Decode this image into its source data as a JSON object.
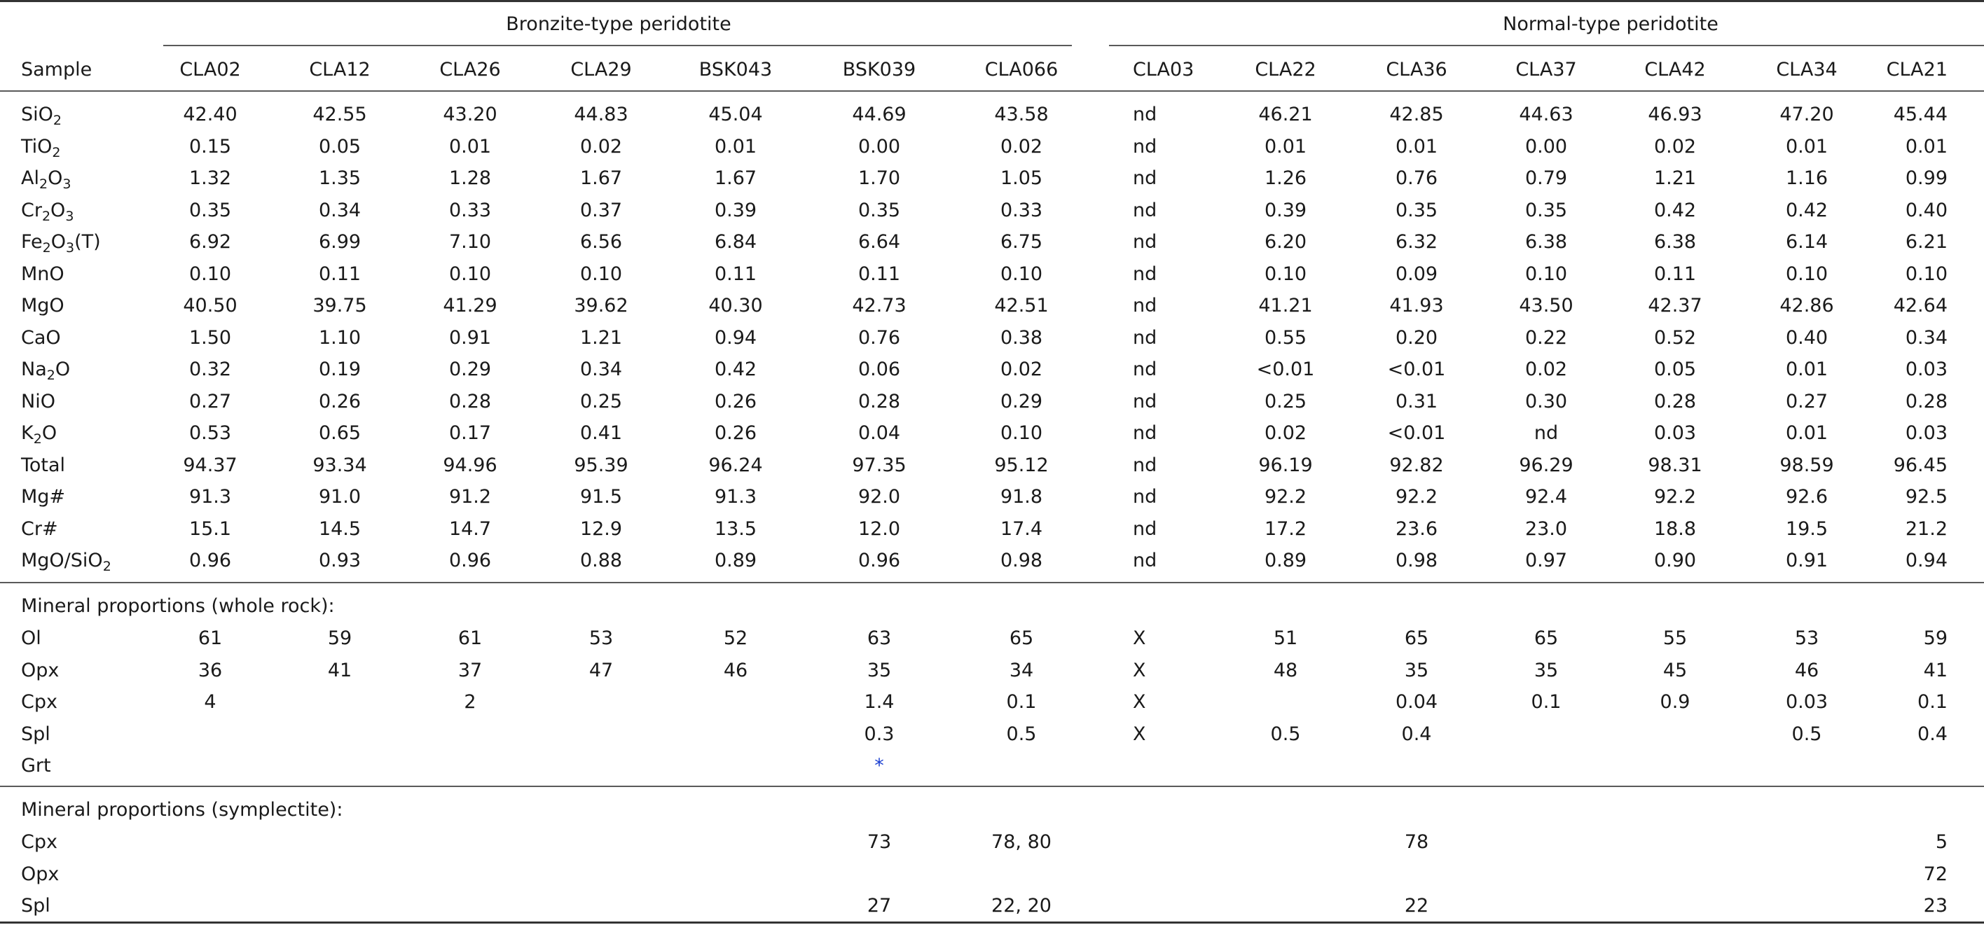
{
  "header": {
    "sample_label": "Sample",
    "group_bronzite": "Bronzite-type peridotite",
    "group_normal": "Normal-type peridotite",
    "samples": [
      "CLA02",
      "CLA12",
      "CLA26",
      "CLA29",
      "BSK043",
      "BSK039",
      "CLA066",
      "CLA03",
      "CLA22",
      "CLA36",
      "CLA37",
      "CLA42",
      "CLA34",
      "CLA21"
    ]
  },
  "chem_rows": [
    {
      "label": "SiO",
      "sub": "2",
      "post": "",
      "values": [
        "42.40",
        "42.55",
        "43.20",
        "44.83",
        "45.04",
        "44.69",
        "43.58",
        "nd",
        "46.21",
        "42.85",
        "44.63",
        "46.93",
        "47.20",
        "45.44"
      ]
    },
    {
      "label": "TiO",
      "sub": "2",
      "post": "",
      "values": [
        "0.15",
        "0.05",
        "0.01",
        "0.02",
        "0.01",
        "0.00",
        "0.02",
        "nd",
        "0.01",
        "0.01",
        "0.00",
        "0.02",
        "0.01",
        "0.01"
      ]
    },
    {
      "label": "Al",
      "sub": "2",
      "post": "O",
      "sub2": "3",
      "values": [
        "1.32",
        "1.35",
        "1.28",
        "1.67",
        "1.67",
        "1.70",
        "1.05",
        "nd",
        "1.26",
        "0.76",
        "0.79",
        "1.21",
        "1.16",
        "0.99"
      ]
    },
    {
      "label": "Cr",
      "sub": "2",
      "post": "O",
      "sub2": "3",
      "values": [
        "0.35",
        "0.34",
        "0.33",
        "0.37",
        "0.39",
        "0.35",
        "0.33",
        "nd",
        "0.39",
        "0.35",
        "0.35",
        "0.42",
        "0.42",
        "0.40"
      ]
    },
    {
      "label": "Fe",
      "sub": "2",
      "post": "O",
      "sub2": "3",
      "post2": "(T)",
      "values": [
        "6.92",
        "6.99",
        "7.10",
        "6.56",
        "6.84",
        "6.64",
        "6.75",
        "nd",
        "6.20",
        "6.32",
        "6.38",
        "6.38",
        "6.14",
        "6.21"
      ]
    },
    {
      "label": "MnO",
      "values": [
        "0.10",
        "0.11",
        "0.10",
        "0.10",
        "0.11",
        "0.11",
        "0.10",
        "nd",
        "0.10",
        "0.09",
        "0.10",
        "0.11",
        "0.10",
        "0.10"
      ]
    },
    {
      "label": "MgO",
      "values": [
        "40.50",
        "39.75",
        "41.29",
        "39.62",
        "40.30",
        "42.73",
        "42.51",
        "nd",
        "41.21",
        "41.93",
        "43.50",
        "42.37",
        "42.86",
        "42.64"
      ]
    },
    {
      "label": "CaO",
      "values": [
        "1.50",
        "1.10",
        "0.91",
        "1.21",
        "0.94",
        "0.76",
        "0.38",
        "nd",
        "0.55",
        "0.20",
        "0.22",
        "0.52",
        "0.40",
        "0.34"
      ]
    },
    {
      "label": "Na",
      "sub": "2",
      "post": "O",
      "values": [
        "0.32",
        "0.19",
        "0.29",
        "0.34",
        "0.42",
        "0.06",
        "0.02",
        "nd",
        "<0.01",
        "<0.01",
        "0.02",
        "0.05",
        "0.01",
        "0.03"
      ]
    },
    {
      "label": "NiO",
      "values": [
        "0.27",
        "0.26",
        "0.28",
        "0.25",
        "0.26",
        "0.28",
        "0.29",
        "nd",
        "0.25",
        "0.31",
        "0.30",
        "0.28",
        "0.27",
        "0.28"
      ]
    },
    {
      "label": "K",
      "sub": "2",
      "post": "O",
      "values": [
        "0.53",
        "0.65",
        "0.17",
        "0.41",
        "0.26",
        "0.04",
        "0.10",
        "nd",
        "0.02",
        "<0.01",
        "nd",
        "0.03",
        "0.01",
        "0.03"
      ]
    },
    {
      "label": "Total",
      "values": [
        "94.37",
        "93.34",
        "94.96",
        "95.39",
        "96.24",
        "97.35",
        "95.12",
        "nd",
        "96.19",
        "92.82",
        "96.29",
        "98.31",
        "98.59",
        "96.45"
      ]
    },
    {
      "label": "Mg#",
      "values": [
        "91.3",
        "91.0",
        "91.2",
        "91.5",
        "91.3",
        "92.0",
        "91.8",
        "nd",
        "92.2",
        "92.2",
        "92.4",
        "92.2",
        "92.6",
        "92.5"
      ]
    },
    {
      "label": "Cr#",
      "values": [
        "15.1",
        "14.5",
        "14.7",
        "12.9",
        "13.5",
        "12.0",
        "17.4",
        "nd",
        "17.2",
        "23.6",
        "23.0",
        "18.8",
        "19.5",
        "21.2"
      ]
    },
    {
      "label": "MgO/SiO",
      "sub": "2",
      "post": "",
      "values": [
        "0.96",
        "0.93",
        "0.96",
        "0.88",
        "0.89",
        "0.96",
        "0.98",
        "nd",
        "0.89",
        "0.98",
        "0.97",
        "0.90",
        "0.91",
        "0.94"
      ]
    }
  ],
  "whole_rock": {
    "title": "Mineral proportions (whole rock):",
    "rows": [
      {
        "label": "Ol",
        "values": [
          "61",
          "59",
          "61",
          "53",
          "52",
          "63",
          "65",
          "X",
          "51",
          "65",
          "65",
          "55",
          "53",
          "59"
        ]
      },
      {
        "label": "Opx",
        "values": [
          "36",
          "41",
          "37",
          "47",
          "46",
          "35",
          "34",
          "X",
          "48",
          "35",
          "35",
          "45",
          "46",
          "41"
        ]
      },
      {
        "label": "Cpx",
        "values": [
          "4",
          "",
          "2",
          "",
          "",
          "1.4",
          "0.1",
          "X",
          "",
          "0.04",
          "0.1",
          "0.9",
          "0.03",
          "0.1"
        ]
      },
      {
        "label": "Spl",
        "values": [
          "",
          "",
          "",
          "",
          "",
          "0.3",
          "0.5",
          "X",
          "0.5",
          "0.4",
          "",
          "",
          "0.5",
          "0.4"
        ]
      },
      {
        "label": "Grt",
        "values": [
          "",
          "",
          "",
          "",
          "",
          "*",
          "",
          "",
          "",
          "",
          "",
          "",
          "",
          ""
        ]
      }
    ]
  },
  "symplectite": {
    "title": "Mineral proportions (symplectite):",
    "rows": [
      {
        "label": "Cpx",
        "values": [
          "",
          "",
          "",
          "",
          "",
          "73",
          "78, 80",
          "",
          "",
          "78",
          "",
          "",
          "",
          "5"
        ]
      },
      {
        "label": "Opx",
        "values": [
          "",
          "",
          "",
          "",
          "",
          "",
          "",
          "",
          "",
          "",
          "",
          "",
          "",
          "72"
        ]
      },
      {
        "label": "Spl",
        "values": [
          "",
          "",
          "",
          "",
          "",
          "27",
          "22, 20",
          "",
          "",
          "22",
          "",
          "",
          "",
          "23"
        ]
      }
    ]
  },
  "colors": {
    "rule": "#333333",
    "text": "#1a1a1a",
    "star": "#1a3fd1"
  }
}
